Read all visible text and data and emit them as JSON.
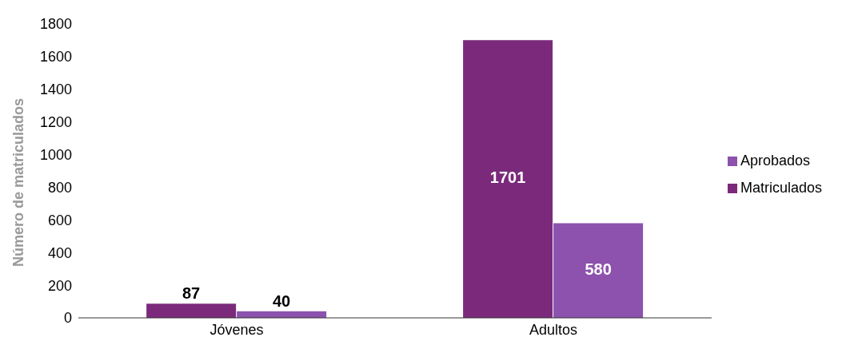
{
  "chart_data": {
    "type": "bar",
    "categories": [
      "Jóvenes",
      "Adultos"
    ],
    "series": [
      {
        "name": "Matriculados",
        "color": "#7b2a7b",
        "values": [
          87,
          1701
        ]
      },
      {
        "name": "Aprobados",
        "color": "#8c52ad",
        "values": [
          40,
          580
        ]
      }
    ],
    "ylabel": "Número de matriculados",
    "ylim": [
      0,
      1800
    ],
    "yticks": [
      0,
      200,
      400,
      600,
      800,
      1000,
      1200,
      1400,
      1600,
      1800
    ],
    "grid": false,
    "legend": "right",
    "data_labels": true
  }
}
